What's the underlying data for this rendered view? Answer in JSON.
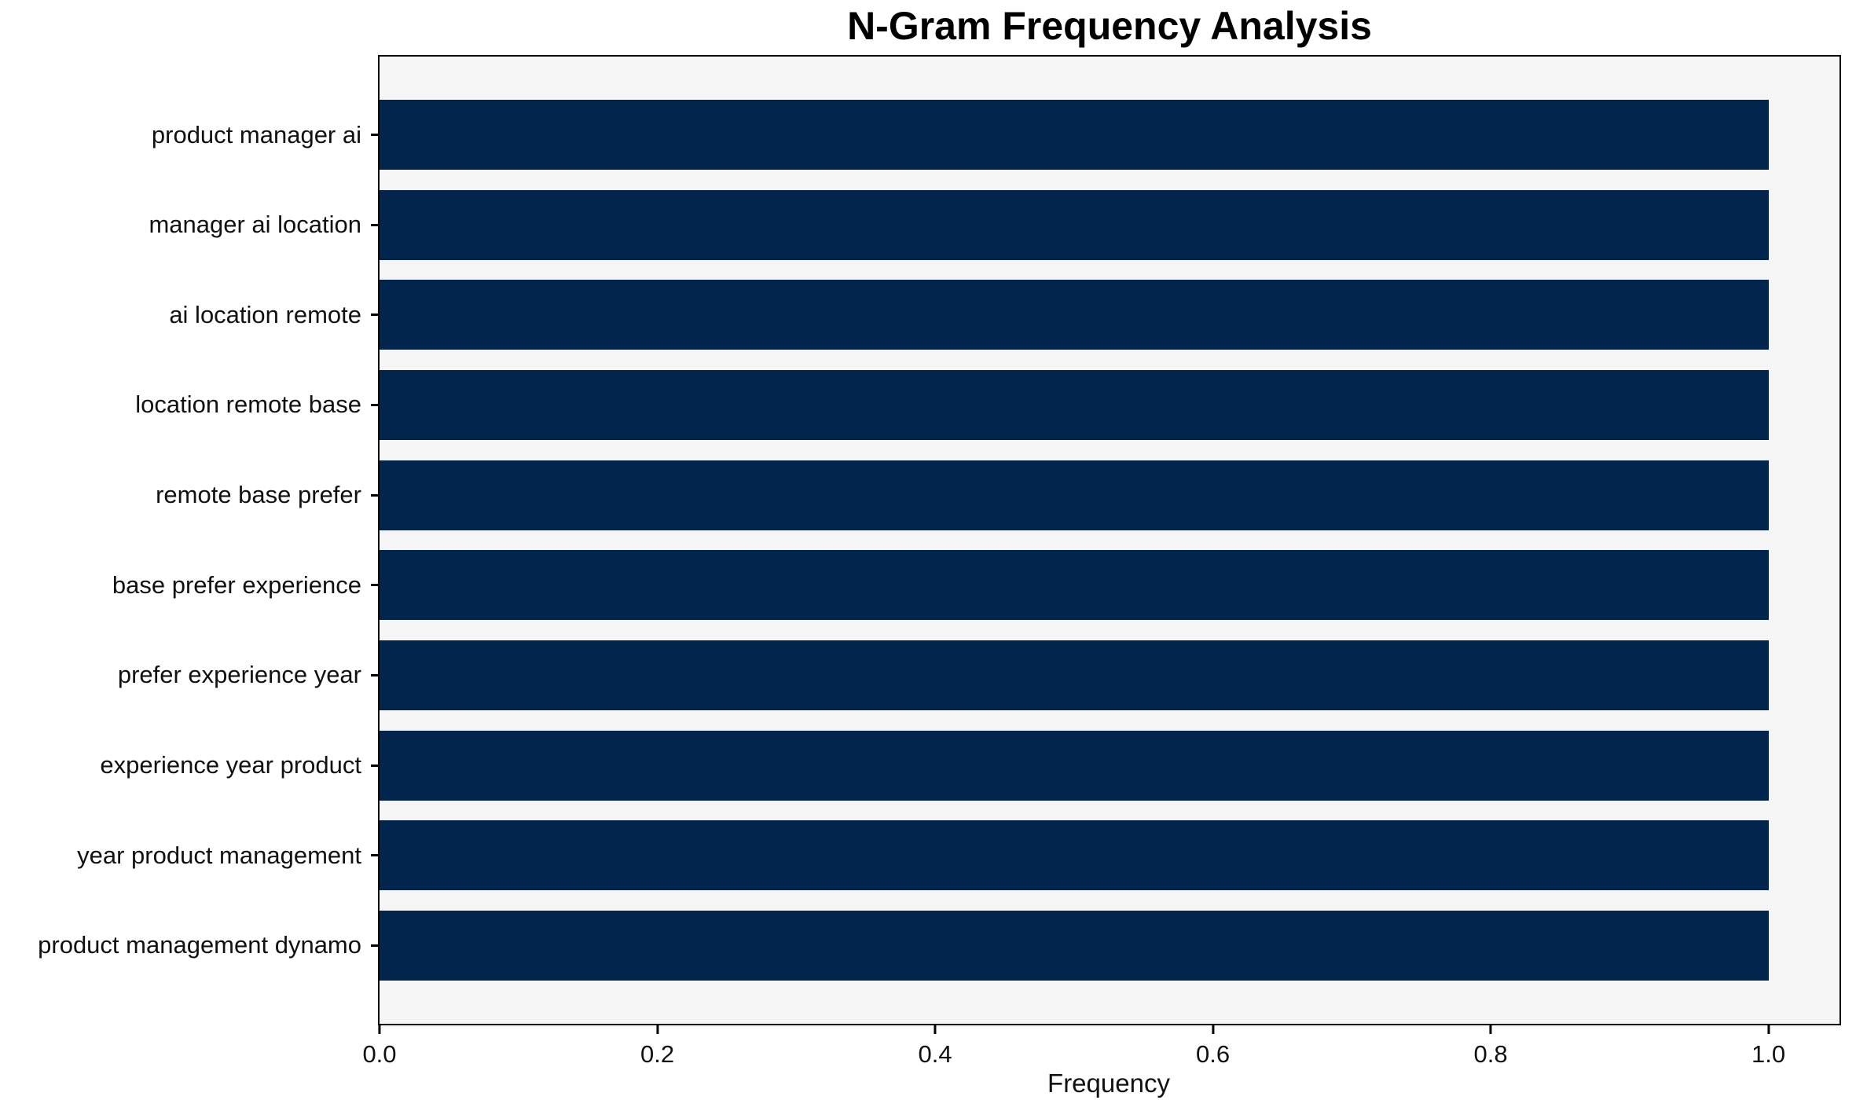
{
  "chart_data": {
    "type": "bar",
    "orientation": "horizontal",
    "title": "N-Gram Frequency Analysis",
    "xlabel": "Frequency",
    "ylabel": "",
    "categories": [
      "product manager ai",
      "manager ai location",
      "ai location remote",
      "location remote base",
      "remote base prefer",
      "base prefer experience",
      "prefer experience year",
      "experience year product",
      "year product management",
      "product management dynamo"
    ],
    "values": [
      1.0,
      1.0,
      1.0,
      1.0,
      1.0,
      1.0,
      1.0,
      1.0,
      1.0,
      1.0
    ],
    "xlim": [
      0,
      1.05
    ],
    "xticks": [
      0.0,
      0.2,
      0.4,
      0.6,
      0.8,
      1.0
    ],
    "xtick_labels": [
      "0.0",
      "0.2",
      "0.4",
      "0.6",
      "0.8",
      "1.0"
    ],
    "grid": false,
    "legend": "none",
    "colors": {
      "bar": "#02254e",
      "plot_background": "#f5f5f5",
      "figure_background": "#ffffff",
      "spine": "#000000",
      "text": "#111111",
      "title_text": "#000000"
    }
  }
}
